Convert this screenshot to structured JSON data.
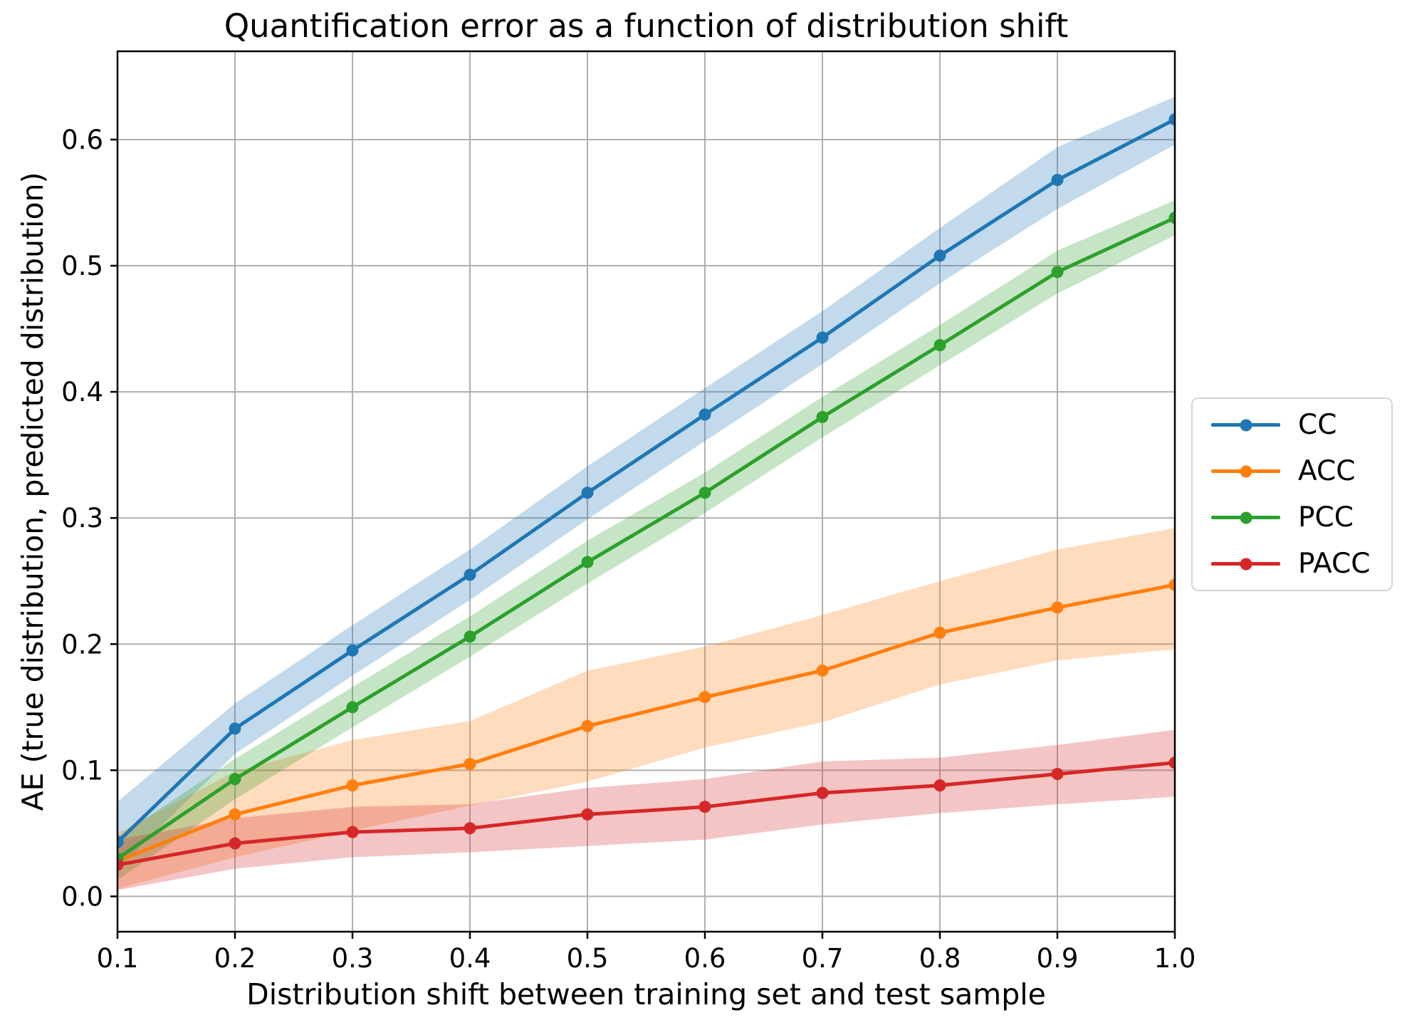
{
  "title": "Quantification error as a function of distribution shift",
  "xlabel": "Distribution shift between training set and test sample",
  "ylabel": "AE (true distribution, predicted distribution)",
  "legend": {
    "items": [
      {
        "label": "CC",
        "color": "#1f77b4"
      },
      {
        "label": "ACC",
        "color": "#ff7f0e"
      },
      {
        "label": "PCC",
        "color": "#2ca02c"
      },
      {
        "label": "PACC",
        "color": "#d62728"
      }
    ]
  },
  "axes": {
    "x_tick_labels": [
      "0.1",
      "0.2",
      "0.3",
      "0.4",
      "0.5",
      "0.6",
      "0.7",
      "0.8",
      "0.9",
      "1.0"
    ],
    "y_tick_labels": [
      "0.0",
      "0.1",
      "0.2",
      "0.3",
      "0.4",
      "0.5",
      "0.6"
    ]
  },
  "chart_data": {
    "type": "line",
    "title": "Quantification error as a function of distribution shift",
    "xlabel": "Distribution shift between training set and test sample",
    "ylabel": "AE (true distribution, predicted distribution)",
    "x": [
      0.1,
      0.2,
      0.3,
      0.4,
      0.5,
      0.6,
      0.7,
      0.8,
      0.9,
      1.0
    ],
    "x_ticks": [
      0.1,
      0.2,
      0.3,
      0.4,
      0.5,
      0.6,
      0.7,
      0.8,
      0.9,
      1.0
    ],
    "y_ticks": [
      0.0,
      0.1,
      0.2,
      0.3,
      0.4,
      0.5,
      0.6
    ],
    "xlim": [
      0.1,
      1.0
    ],
    "ylim": [
      -0.028,
      0.67
    ],
    "grid": true,
    "legend_position": "center right outside",
    "band_opacity": 0.27,
    "series": [
      {
        "name": "CC",
        "color": "#1f77b4",
        "values": [
          0.043,
          0.133,
          0.195,
          0.255,
          0.32,
          0.382,
          0.443,
          0.508,
          0.568,
          0.616
        ],
        "band_lo": [
          0.022,
          0.113,
          0.175,
          0.235,
          0.299,
          0.361,
          0.422,
          0.486,
          0.545,
          0.596
        ],
        "band_hi": [
          0.075,
          0.153,
          0.215,
          0.275,
          0.341,
          0.403,
          0.464,
          0.53,
          0.594,
          0.634
        ]
      },
      {
        "name": "ACC",
        "color": "#ff7f0e",
        "values": [
          0.028,
          0.065,
          0.088,
          0.105,
          0.135,
          0.158,
          0.179,
          0.209,
          0.229,
          0.247
        ],
        "band_lo": [
          0.006,
          0.031,
          0.052,
          0.072,
          0.091,
          0.118,
          0.138,
          0.168,
          0.187,
          0.196
        ],
        "band_hi": [
          0.05,
          0.099,
          0.124,
          0.139,
          0.179,
          0.198,
          0.223,
          0.25,
          0.275,
          0.292
        ]
      },
      {
        "name": "PCC",
        "color": "#2ca02c",
        "values": [
          0.03,
          0.093,
          0.15,
          0.206,
          0.265,
          0.32,
          0.38,
          0.437,
          0.495,
          0.538
        ],
        "band_lo": [
          0.013,
          0.077,
          0.134,
          0.19,
          0.248,
          0.304,
          0.364,
          0.421,
          0.478,
          0.524
        ],
        "band_hi": [
          0.047,
          0.109,
          0.166,
          0.222,
          0.282,
          0.336,
          0.396,
          0.453,
          0.512,
          0.552
        ]
      },
      {
        "name": "PACC",
        "color": "#d62728",
        "values": [
          0.025,
          0.042,
          0.051,
          0.054,
          0.065,
          0.071,
          0.082,
          0.088,
          0.097,
          0.106
        ],
        "band_lo": [
          0.005,
          0.022,
          0.031,
          0.035,
          0.04,
          0.045,
          0.057,
          0.066,
          0.073,
          0.079
        ],
        "band_hi": [
          0.045,
          0.062,
          0.071,
          0.073,
          0.086,
          0.093,
          0.107,
          0.11,
          0.12,
          0.132
        ]
      }
    ]
  }
}
